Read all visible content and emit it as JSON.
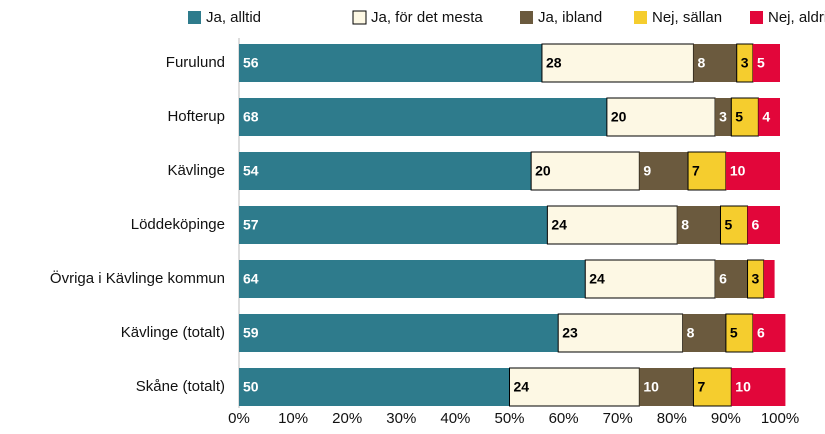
{
  "chart_data": {
    "type": "stacked-barh",
    "categories": [
      "Furulund",
      "Hofterup",
      "Kävlinge",
      "Löddeköpinge",
      "Övriga i Kävlinge kommun",
      "Kävlinge (totalt)",
      "Skåne (totalt)"
    ],
    "series": [
      {
        "name": "Ja, alltid",
        "color": "#2e7b8c",
        "label_color": "#ffffff",
        "values": [
          56,
          68,
          54,
          57,
          64,
          59,
          50
        ]
      },
      {
        "name": "Ja, för det mesta",
        "color": "#fdf8e4",
        "label_color": "#000000",
        "values": [
          28,
          20,
          20,
          24,
          24,
          23,
          24
        ]
      },
      {
        "name": "Ja, ibland",
        "color": "#6b5a3e",
        "label_color": "#ffffff",
        "values": [
          8,
          3,
          9,
          8,
          6,
          8,
          10
        ]
      },
      {
        "name": "Nej, sällan",
        "color": "#f5cd2e",
        "label_color": "#000000",
        "values": [
          3,
          5,
          7,
          5,
          3,
          5,
          7
        ]
      },
      {
        "name": "Nej, aldrig",
        "color": "#e2063a",
        "label_color": "#ffffff",
        "values": [
          5,
          4,
          10,
          6,
          2,
          6,
          10
        ],
        "value_labels": [
          "5",
          "4",
          "10",
          "6",
          null,
          "6",
          "10"
        ]
      }
    ],
    "xlim": [
      0,
      100
    ],
    "xticks": [
      {
        "value": 0,
        "label": "0%"
      },
      {
        "value": 10,
        "label": "10%"
      },
      {
        "value": 20,
        "label": "20%"
      },
      {
        "value": 30,
        "label": "30%"
      },
      {
        "value": 40,
        "label": "40%"
      },
      {
        "value": 50,
        "label": "50%"
      },
      {
        "value": 60,
        "label": "60%"
      },
      {
        "value": 70,
        "label": "70%"
      },
      {
        "value": 80,
        "label": "80%"
      },
      {
        "value": 90,
        "label": "90%"
      },
      {
        "value": 100,
        "label": "100%"
      }
    ],
    "legend": "top"
  }
}
